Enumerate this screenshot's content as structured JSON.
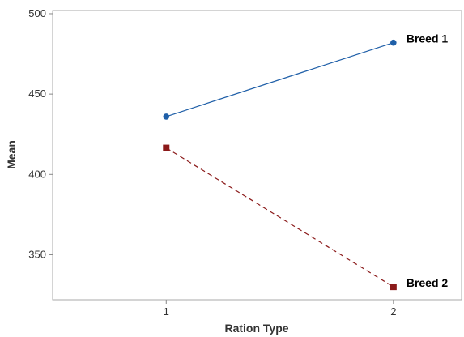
{
  "chart_data": {
    "type": "line",
    "title": "",
    "xlabel": "Ration Type",
    "ylabel": "Mean",
    "categories": [
      "1",
      "2"
    ],
    "xlim": [
      0.5,
      2.3
    ],
    "ylim": [
      322,
      502
    ],
    "yticks": [
      350,
      400,
      450,
      500
    ],
    "grid": false,
    "legend": "inline-labels",
    "series": [
      {
        "name": "Breed 1",
        "values": [
          436,
          482
        ],
        "color": "#1f5fa8",
        "marker": "circle",
        "linestyle": "solid"
      },
      {
        "name": "Breed 2",
        "values": [
          416.5,
          330
        ],
        "color": "#8b1a1a",
        "marker": "square",
        "linestyle": "dashed"
      }
    ]
  }
}
